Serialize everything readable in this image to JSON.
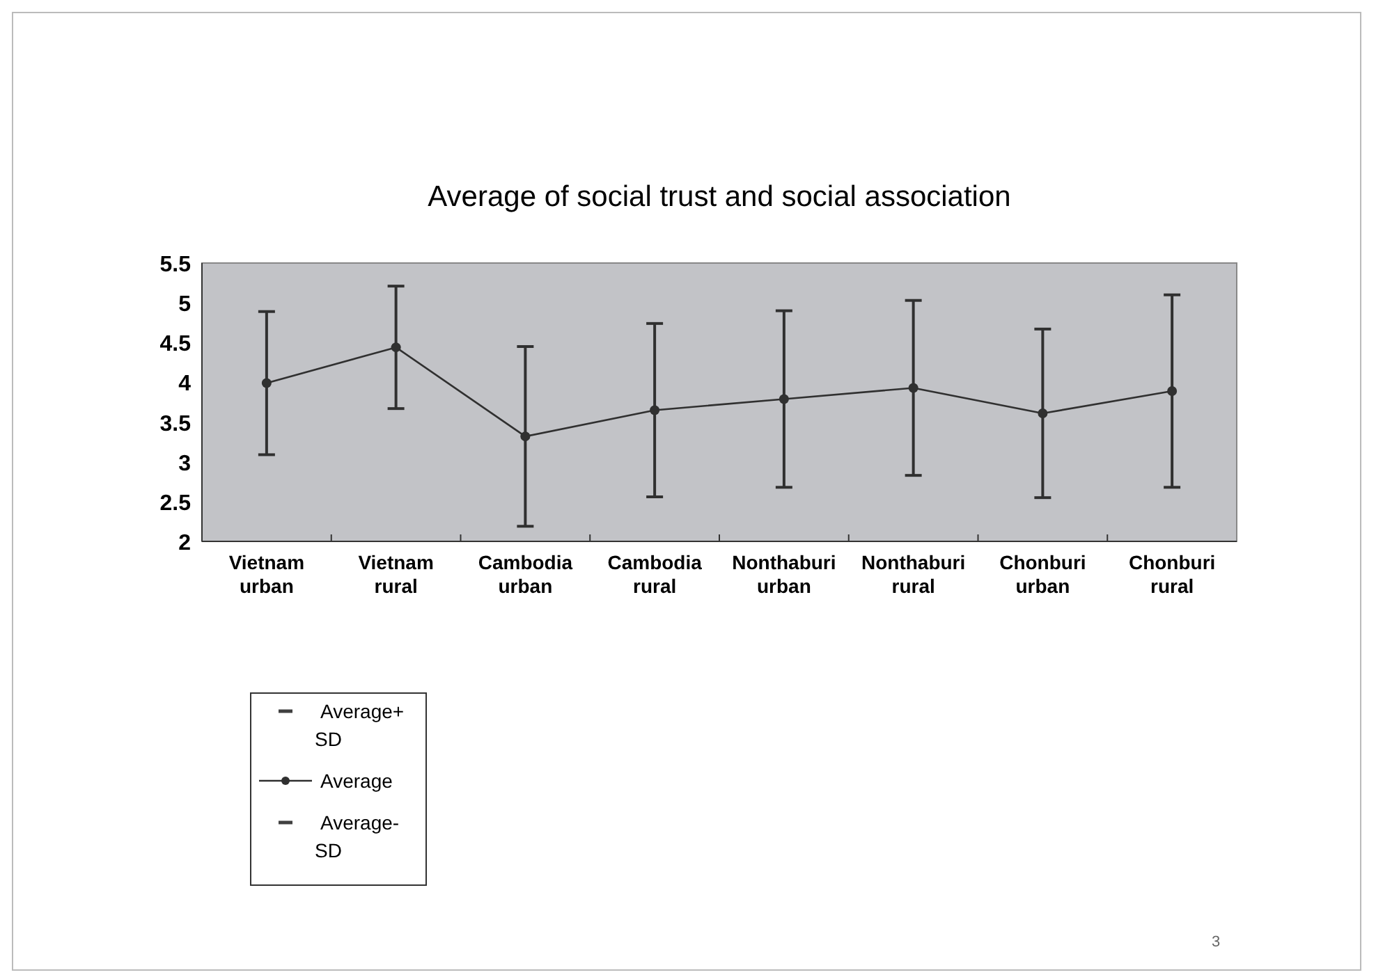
{
  "chart_data": {
    "type": "line",
    "title": "Average of social trust and social association",
    "categories": [
      "Vietnam urban",
      "Vietnam rural",
      "Cambodia urban",
      "Cambodia rural",
      "Nonthaburi urban",
      "Nonthaburi rural",
      "Chonburi urban",
      "Chonburi rural"
    ],
    "series": [
      {
        "name": "Average",
        "type": "line",
        "color": "#303030",
        "marker": "circle",
        "values": [
          3.99,
          4.44,
          3.32,
          3.65,
          3.79,
          3.93,
          3.61,
          3.89
        ],
        "errors": [
          0.9,
          0.77,
          1.13,
          1.09,
          1.11,
          1.1,
          1.06,
          1.21
        ]
      }
    ],
    "ylim": [
      2,
      5.5
    ],
    "yticks": [
      2,
      2.5,
      3,
      3.5,
      4,
      4.5,
      5,
      5.5
    ],
    "grid": false,
    "legend": "bottom left",
    "annotations": [
      "Average+SD",
      "Average-SD",
      "3"
    ]
  }
}
